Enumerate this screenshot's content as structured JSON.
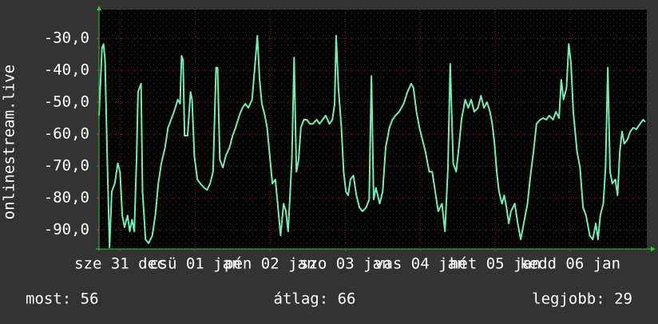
{
  "chart_data": {
    "type": "line",
    "y_label": "onlinestream.live",
    "color": "#72eeb2",
    "grid": true,
    "xlim": [
      -0.28,
      7.02
    ],
    "ylim": [
      -96,
      -21
    ],
    "xticks": [
      {
        "value": 0,
        "label": "sze 31 dec"
      },
      {
        "value": 1,
        "label": "csü 01 jan"
      },
      {
        "value": 2,
        "label": "pén 02 jan"
      },
      {
        "value": 3,
        "label": "szo 03 jan"
      },
      {
        "value": 4,
        "label": "vas 04 jan"
      },
      {
        "value": 5,
        "label": "hét 05 jan"
      },
      {
        "value": 6,
        "label": "kedd 06 jan"
      }
    ],
    "yticks": [
      {
        "value": -30,
        "label": "-30,0"
      },
      {
        "value": -40,
        "label": "-40,0"
      },
      {
        "value": -50,
        "label": "-50,0"
      },
      {
        "value": -60,
        "label": "-60,0"
      },
      {
        "value": -70,
        "label": "-70,0"
      },
      {
        "value": -80,
        "label": "-80,0"
      },
      {
        "value": -90,
        "label": "-90,0"
      }
    ],
    "x": [
      -0.28,
      -0.24,
      -0.22,
      -0.2,
      -0.17,
      -0.14,
      -0.11,
      -0.07,
      -0.03,
      0,
      0.03,
      0.06,
      0.1,
      0.13,
      0.16,
      0.19,
      0.22,
      0.24,
      0.28,
      0.3,
      0.34,
      0.38,
      0.43,
      0.47,
      0.51,
      0.55,
      0.6,
      0.64,
      0.68,
      0.72,
      0.77,
      0.8,
      0.82,
      0.84,
      0.86,
      0.9,
      0.94,
      0.96,
      0.99,
      1.03,
      1.07,
      1.12,
      1.16,
      1.2,
      1.24,
      1.28,
      1.3,
      1.33,
      1.37,
      1.41,
      1.46,
      1.5,
      1.54,
      1.59,
      1.63,
      1.67,
      1.71,
      1.76,
      1.8,
      1.83,
      1.86,
      1.89,
      1.93,
      1.96,
      1.99,
      2.03,
      2.07,
      2.11,
      2.14,
      2.18,
      2.21,
      2.24,
      2.29,
      2.32,
      2.35,
      2.38,
      2.41,
      2.45,
      2.49,
      2.53,
      2.57,
      2.62,
      2.66,
      2.7,
      2.74,
      2.79,
      2.83,
      2.86,
      2.88,
      2.91,
      2.95,
      2.98,
      3.01,
      3.04,
      3.07,
      3.11,
      3.15,
      3.19,
      3.23,
      3.28,
      3.32,
      3.35,
      3.38,
      3.41,
      3.46,
      3.5,
      3.54,
      3.59,
      3.63,
      3.67,
      3.72,
      3.78,
      3.83,
      3.88,
      3.91,
      3.95,
      3.99,
      4.03,
      4.07,
      4.12,
      4.16,
      4.2,
      4.24,
      4.29,
      4.33,
      4.37,
      4.4,
      4.44,
      4.48,
      4.52,
      4.55,
      4.6,
      4.64,
      4.68,
      4.72,
      4.77,
      4.81,
      4.85,
      4.89,
      4.93,
      4.96,
      4.99,
      5.02,
      5.05,
      5.09,
      5.12,
      5.15,
      5.18,
      5.21,
      5.26,
      5.3,
      5.34,
      5.38,
      5.43,
      5.47,
      5.51,
      5.55,
      5.6,
      5.64,
      5.68,
      5.72,
      5.77,
      5.81,
      5.85,
      5.88,
      5.91,
      5.95,
      5.98,
      6.01,
      6.04,
      6.09,
      6.13,
      6.17,
      6.21,
      6.26,
      6.3,
      6.34,
      6.37,
      6.4,
      6.44,
      6.47,
      6.5,
      6.53,
      6.56,
      6.6,
      6.63,
      6.66,
      6.69,
      6.72,
      6.76,
      6.8,
      6.84,
      6.88,
      6.93,
      6.97,
      7.0
    ],
    "values": [
      -54.2,
      -33,
      -31.8,
      -36.8,
      -68,
      -95.5,
      -78,
      -75.5,
      -69.2,
      -71.8,
      -85.5,
      -89.2,
      -85.5,
      -90.5,
      -86.8,
      -90.5,
      -68,
      -46.8,
      -44.2,
      -78,
      -93,
      -94.2,
      -91.8,
      -85.5,
      -75.5,
      -69.2,
      -64.2,
      -58,
      -55.5,
      -53,
      -49.2,
      -50.5,
      -35.5,
      -36.8,
      -60.5,
      -60.5,
      -46.8,
      -49.2,
      -66.8,
      -74.2,
      -75.5,
      -76.8,
      -77.5,
      -75.5,
      -71.8,
      -39.2,
      -39.2,
      -68,
      -70.5,
      -66.8,
      -64.2,
      -60.5,
      -58,
      -54.2,
      -51.8,
      -50.5,
      -51.8,
      -49.2,
      -38,
      -29.2,
      -43,
      -50.5,
      -54.2,
      -58,
      -65.5,
      -75.5,
      -74.2,
      -84.2,
      -91.8,
      -81.8,
      -84.2,
      -90.5,
      -68,
      -36,
      -71.8,
      -68,
      -58,
      -55.5,
      -55.5,
      -56.8,
      -56.8,
      -55.5,
      -56.8,
      -55.5,
      -54.2,
      -56.8,
      -55.5,
      -50.5,
      -29.2,
      -45.5,
      -58,
      -71.8,
      -78,
      -79.2,
      -74.2,
      -73,
      -79.2,
      -83,
      -84.2,
      -83,
      -80.5,
      -41.8,
      -80.5,
      -76.8,
      -81.8,
      -78,
      -64.2,
      -58,
      -55.5,
      -54.2,
      -53,
      -50.5,
      -46.8,
      -44.2,
      -45.5,
      -53,
      -58,
      -61.8,
      -65.5,
      -71.8,
      -71.8,
      -78,
      -84.2,
      -81.8,
      -90.5,
      -70.5,
      -38,
      -69.2,
      -71.8,
      -63,
      -55.5,
      -49.2,
      -51.8,
      -49.2,
      -53,
      -51.8,
      -48,
      -51.8,
      -50,
      -53,
      -56.8,
      -63,
      -71.8,
      -78,
      -81.8,
      -79.2,
      -83,
      -88,
      -84.2,
      -81.8,
      -88,
      -93,
      -88,
      -81.8,
      -73,
      -65.5,
      -56.8,
      -55.5,
      -55,
      -55.5,
      -54.2,
      -55.5,
      -53,
      -55,
      -43,
      -49.2,
      -45.5,
      -31.8,
      -38,
      -53,
      -65.5,
      -70.5,
      -83,
      -85.5,
      -91.8,
      -93,
      -88,
      -93,
      -85.5,
      -81.8,
      -70.5,
      -39.2,
      -71.8,
      -75.5,
      -74.2,
      -79.2,
      -65.5,
      -59.2,
      -63,
      -61.8,
      -59.2,
      -58,
      -58.5,
      -56.8,
      -55.5,
      -56.2
    ],
    "stats": [
      "most: 56",
      "átlag: 66",
      "legjobb: 29"
    ]
  }
}
